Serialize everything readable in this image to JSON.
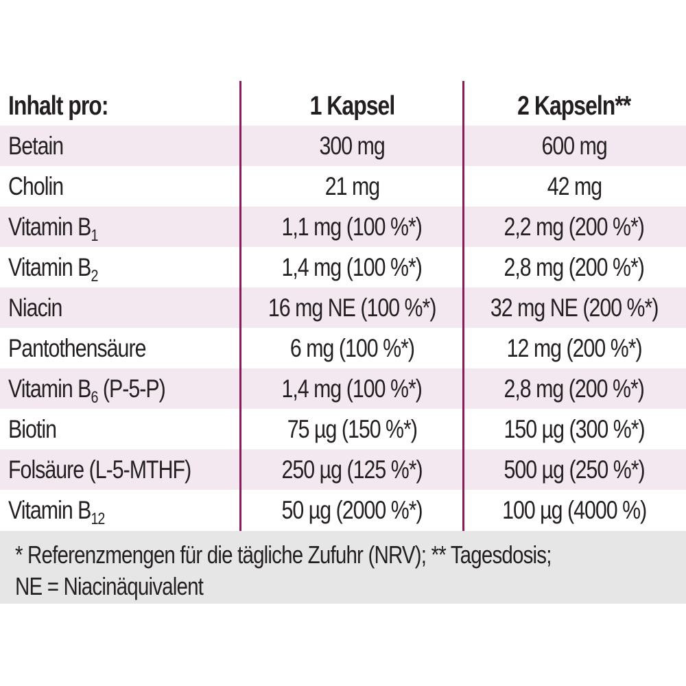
{
  "table": {
    "header": {
      "label": "Inhalt pro:",
      "col1": "1 Kapsel",
      "col2": "2 Kapseln**"
    },
    "rows": [
      {
        "name": "Betain",
        "sub": "",
        "suffix": "",
        "col1": "300 mg",
        "col2": "600 mg"
      },
      {
        "name": "Cholin",
        "sub": "",
        "suffix": "",
        "col1": "21 mg",
        "col2": "42 mg"
      },
      {
        "name": "Vitamin B",
        "sub": "1",
        "suffix": "",
        "col1": "1,1 mg (100 %*)",
        "col2": "2,2 mg (200 %*)"
      },
      {
        "name": "Vitamin B",
        "sub": "2",
        "suffix": "",
        "col1": "1,4 mg (100 %*)",
        "col2": "2,8 mg (200 %*)"
      },
      {
        "name": "Niacin",
        "sub": "",
        "suffix": "",
        "col1": "16 mg NE (100 %*)",
        "col2": "32 mg NE (200 %*)"
      },
      {
        "name": "Pantothensäure",
        "sub": "",
        "suffix": "",
        "col1": "6 mg (100 %*)",
        "col2": "12 mg (200 %*)"
      },
      {
        "name": "Vitamin B",
        "sub": "6",
        "suffix": " (P-5-P)",
        "col1": "1,4 mg (100 %*)",
        "col2": "2,8 mg (200 %*)"
      },
      {
        "name": "Biotin",
        "sub": "",
        "suffix": "",
        "col1": "75 µg (150 %*)",
        "col2": "150 µg (300 %*)"
      },
      {
        "name": "Folsäure (L-5-MTHF)",
        "sub": "",
        "suffix": "",
        "col1": "250 µg (125 %*)",
        "col2": "500 µg (250 %*)"
      },
      {
        "name": "Vitamin B",
        "sub": "12",
        "suffix": "",
        "col1": "50 µg (2000 %*)",
        "col2": "100 µg (4000 %)"
      }
    ]
  },
  "footnote": {
    "line1": "* Referenzmengen für die tägliche Zufuhr (NRV); ** Tagesdosis;",
    "line2": "NE = Niacinäquivalent"
  },
  "colors": {
    "divider": "#8b1a5a",
    "row_shade": "#f3e8f0",
    "footnote_bg": "#e6e6e6",
    "text": "#231f20"
  }
}
